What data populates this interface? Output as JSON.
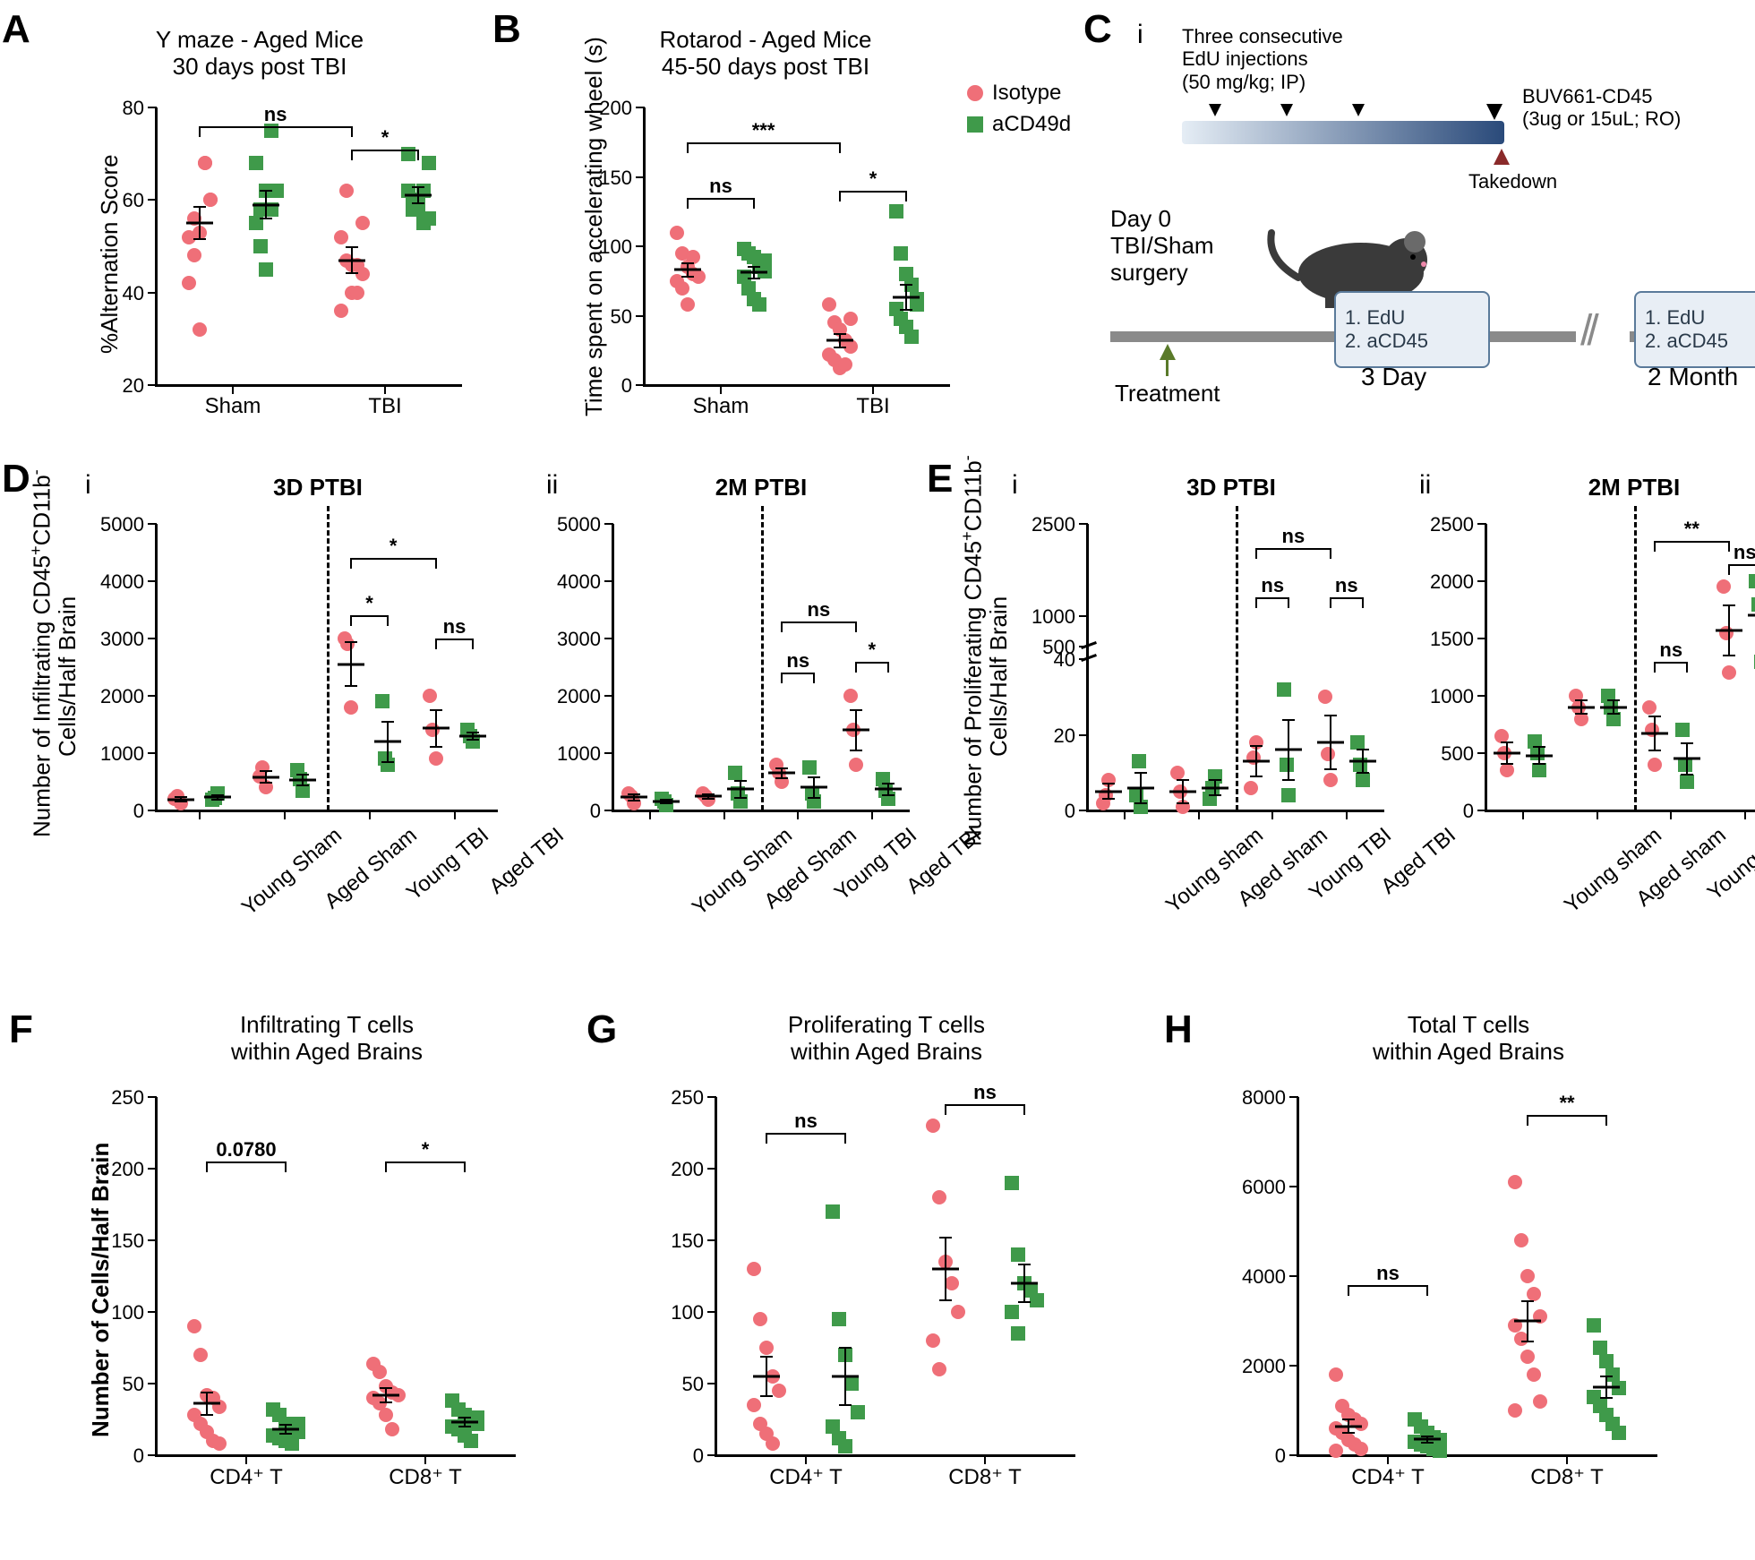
{
  "colors": {
    "isotype": "#ef6f78",
    "acd49d": "#3f9a4a",
    "black": "#000000",
    "bg": "#ffffff"
  },
  "legend": {
    "isotype": "Isotype",
    "acd49d": "aCD49d"
  },
  "panelA": {
    "letter": "A",
    "title1": "Y maze - Aged Mice",
    "title2": "30 days post TBI",
    "ylabel": "%Alternation Score",
    "ylim": [
      20,
      80
    ],
    "ytick_step": 20,
    "x_categories": [
      "Sham",
      "TBI"
    ],
    "groups": {
      "Sham": {
        "Isotype": [
          52,
          56,
          53,
          68,
          60,
          42,
          48,
          32,
          68,
          60
        ],
        "aCD49d": [
          55,
          58,
          62,
          75,
          62,
          68,
          50,
          45,
          58
        ]
      },
      "TBI": {
        "Isotype": [
          52,
          47,
          46,
          46,
          44,
          36,
          62,
          40,
          40,
          55
        ],
        "aCD49d": [
          62,
          60,
          58,
          55,
          68,
          70,
          58,
          60,
          62,
          56
        ]
      }
    },
    "means": {
      "Sham": {
        "Isotype": 55,
        "aCD49d": 59
      },
      "TBI": {
        "Isotype": 47,
        "aCD49d": 61
      }
    },
    "sem": {
      "Sham": {
        "Isotype": 3.5,
        "aCD49d": 3.0
      },
      "TBI": {
        "Isotype": 2.8,
        "aCD49d": 1.8
      }
    },
    "sig": [
      {
        "from": "Sham.Isotype",
        "to": "TBI.Isotype",
        "label": "ns",
        "y": 76
      },
      {
        "from": "TBI.Isotype",
        "to": "TBI.aCD49d",
        "label": "*",
        "y": 71
      }
    ]
  },
  "panelB": {
    "letter": "B",
    "title1": "Rotarod - Aged Mice",
    "title2": "45-50 days post TBI",
    "ylabel": "Time spent on accelerating wheel (s)",
    "ylim": [
      0,
      200
    ],
    "ytick_step": 50,
    "x_categories": [
      "Sham",
      "TBI"
    ],
    "groups": {
      "Sham": {
        "Isotype": [
          110,
          95,
          85,
          80,
          78,
          75,
          70,
          58,
          92
        ],
        "aCD49d": [
          98,
          95,
          92,
          85,
          82,
          78,
          70,
          62,
          58,
          90
        ]
      },
      "TBI": {
        "Isotype": [
          58,
          45,
          40,
          32,
          28,
          22,
          18,
          12,
          15,
          48
        ],
        "aCD49d": [
          125,
          95,
          80,
          72,
          62,
          55,
          48,
          42,
          35,
          58
        ]
      }
    },
    "means": {
      "Sham": {
        "Isotype": 83,
        "aCD49d": 81
      },
      "TBI": {
        "Isotype": 32,
        "aCD49d": 63
      }
    },
    "sem": {
      "Sham": {
        "Isotype": 5,
        "aCD49d": 4
      },
      "TBI": {
        "Isotype": 5,
        "aCD49d": 9
      }
    },
    "sig": [
      {
        "from": "Sham.Isotype",
        "to": "Sham.aCD49d",
        "label": "ns",
        "y": 135
      },
      {
        "from": "Sham.Isotype",
        "to": "TBI.Isotype",
        "label": "***",
        "y": 175
      },
      {
        "from": "TBI.Isotype",
        "to": "TBI.aCD49d",
        "label": "*",
        "y": 140
      }
    ]
  },
  "panelC": {
    "letter": "C",
    "sub_i": "i",
    "edu_text1": "Three  consecutive",
    "edu_text2": "EdU injections",
    "edu_text3": "(50 mg/kg; IP)",
    "buv_text1": "BUV661-CD45",
    "buv_text2": "(3ug or 15uL; RO)",
    "takedown": "Takedown",
    "day0_1": "Day 0",
    "day0_2": "TBI/Sham",
    "day0_3": "surgery",
    "treatment": "Treatment",
    "box_line1": "1. EdU",
    "box_line2": "2. aCD45",
    "tp1": "3 Day",
    "tp2": "2 Month"
  },
  "panelD": {
    "letter": "D",
    "ylabel1": "Number of Infiltrating CD45",
    "ylabel2": "Cells/Half Brain",
    "sub_i": "i",
    "sub_ii": "ii",
    "title_i": "3D PTBI",
    "title_ii": "2M PTBI",
    "ylim": [
      0,
      5000
    ],
    "ytick_step": 1000,
    "x_categories": [
      "Young Sham",
      "Aged Sham",
      "Young TBI",
      "Aged TBI"
    ],
    "i": {
      "groups": {
        "Young Sham": {
          "Isotype": [
            200,
            250,
            120
          ],
          "aCD49d": [
            180,
            220,
            300
          ]
        },
        "Aged Sham": {
          "Isotype": [
            600,
            750,
            400
          ],
          "aCD49d": [
            700,
            550,
            350
          ]
        },
        "Young TBI": {
          "Isotype": [
            3000,
            2900,
            1800
          ],
          "aCD49d": [
            1900,
            900,
            800
          ]
        },
        "Aged TBI": {
          "Isotype": [
            2000,
            1400,
            900
          ],
          "aCD49d": [
            1400,
            1300,
            1200
          ]
        }
      },
      "means": {
        "Young Sham": {
          "Isotype": 190,
          "aCD49d": 230
        },
        "Aged Sham": {
          "Isotype": 580,
          "aCD49d": 530
        },
        "Young TBI": {
          "Isotype": 2550,
          "aCD49d": 1200
        },
        "Aged TBI": {
          "Isotype": 1430,
          "aCD49d": 1300
        }
      },
      "sem": {
        "Young Sham": {
          "Isotype": 40,
          "aCD49d": 40
        },
        "Aged Sham": {
          "Isotype": 100,
          "aCD49d": 100
        },
        "Young TBI": {
          "Isotype": 380,
          "aCD49d": 350
        },
        "Aged TBI": {
          "Isotype": 320,
          "aCD49d": 60
        }
      },
      "sig": [
        {
          "from": "Young TBI.Isotype",
          "to": "Young TBI.aCD49d",
          "label": "*",
          "y": 3400
        },
        {
          "from": "Young TBI.Isotype",
          "to": "Aged TBI.Isotype",
          "label": "*",
          "y": 4400
        },
        {
          "from": "Aged TBI.Isotype",
          "to": "Aged TBI.aCD49d",
          "label": "ns",
          "y": 3000
        }
      ]
    },
    "ii": {
      "groups": {
        "Young Sham": {
          "Isotype": [
            300,
            250,
            120
          ],
          "aCD49d": [
            200,
            150,
            100
          ]
        },
        "Aged Sham": {
          "Isotype": [
            300,
            250,
            180
          ],
          "aCD49d": [
            650,
            300,
            150
          ]
        },
        "Young TBI": {
          "Isotype": [
            800,
            650,
            500
          ],
          "aCD49d": [
            750,
            300,
            150
          ]
        },
        "Aged TBI": {
          "Isotype": [
            2000,
            1400,
            800
          ],
          "aCD49d": [
            550,
            350,
            200
          ]
        }
      },
      "means": {
        "Young Sham": {
          "Isotype": 230,
          "aCD49d": 150
        },
        "Aged Sham": {
          "Isotype": 245,
          "aCD49d": 370
        },
        "Young TBI": {
          "Isotype": 650,
          "aCD49d": 400
        },
        "Aged TBI": {
          "Isotype": 1400,
          "aCD49d": 370
        }
      },
      "sem": {
        "Young Sham": {
          "Isotype": 55,
          "aCD49d": 30
        },
        "Aged Sham": {
          "Isotype": 35,
          "aCD49d": 150
        },
        "Young TBI": {
          "Isotype": 90,
          "aCD49d": 180
        },
        "Aged TBI": {
          "Isotype": 350,
          "aCD49d": 105
        }
      },
      "sig": [
        {
          "from": "Young TBI.Isotype",
          "to": "Young TBI.aCD49d",
          "label": "ns",
          "y": 2400
        },
        {
          "from": "Young TBI.Isotype",
          "to": "Aged TBI.Isotype",
          "label": "ns",
          "y": 3300
        },
        {
          "from": "Aged TBI.Isotype",
          "to": "Aged TBI.aCD49d",
          "label": "*",
          "y": 2600
        }
      ]
    }
  },
  "panelE": {
    "letter": "E",
    "ylabel1": "Number of Proliferating CD45",
    "ylabel2": "Cells/Half Brain",
    "sub_i": "i",
    "sub_ii": "ii",
    "title_i": "3D PTBI",
    "title_ii": "2M PTBI",
    "x_categories": [
      "Young sham",
      "Aged sham",
      "Young TBI",
      "Aged TBI"
    ],
    "i": {
      "ylim_lower": [
        0,
        40
      ],
      "ytick_lower": [
        0,
        20,
        40
      ],
      "ylim_upper": [
        500,
        2500
      ],
      "ytick_upper": [
        500,
        1000,
        2500
      ],
      "groups": {
        "Young sham": {
          "Isotype": [
            2,
            4,
            8
          ],
          "aCD49d": [
            4,
            13,
            1
          ]
        },
        "Aged sham": {
          "Isotype": [
            10,
            5,
            1
          ],
          "aCD49d": [
            3,
            6,
            9
          ]
        },
        "Young TBI": {
          "Isotype": [
            6,
            14,
            18
          ],
          "aCD49d": [
            32,
            12,
            4
          ]
        },
        "Aged TBI": {
          "Isotype": [
            30,
            15,
            8
          ],
          "aCD49d": [
            18,
            12,
            8
          ]
        }
      },
      "means": {
        "Young sham": {
          "Isotype": 5,
          "aCD49d": 6
        },
        "Aged sham": {
          "Isotype": 5,
          "aCD49d": 6
        },
        "Young TBI": {
          "Isotype": 13,
          "aCD49d": 16
        },
        "Aged TBI": {
          "Isotype": 18,
          "aCD49d": 13
        }
      },
      "sem": {
        "Young sham": {
          "Isotype": 2,
          "aCD49d": 4
        },
        "Aged sham": {
          "Isotype": 3,
          "aCD49d": 2
        },
        "Young TBI": {
          "Isotype": 4,
          "aCD49d": 8
        },
        "Aged TBI": {
          "Isotype": 7,
          "aCD49d": 3
        }
      },
      "sig": [
        {
          "from": "Young TBI.Isotype",
          "to": "Young TBI.aCD49d",
          "label": "ns",
          "y_seg": "upper",
          "y": 1300
        },
        {
          "from": "Young TBI.Isotype",
          "to": "Aged TBI.Isotype",
          "label": "ns",
          "y_seg": "upper",
          "y": 2100
        },
        {
          "from": "Aged TBI.Isotype",
          "to": "Aged TBI.aCD49d",
          "label": "ns",
          "y_seg": "upper",
          "y": 1300
        }
      ]
    },
    "ii": {
      "ylim": [
        0,
        2500
      ],
      "ytick_step": 500,
      "groups": {
        "Young sham": {
          "Isotype": [
            650,
            500,
            350
          ],
          "aCD49d": [
            600,
            500,
            350
          ]
        },
        "Aged sham": {
          "Isotype": [
            1000,
            900,
            800
          ],
          "aCD49d": [
            1000,
            900,
            800
          ]
        },
        "Young TBI": {
          "Isotype": [
            900,
            700,
            400
          ],
          "aCD49d": [
            700,
            400,
            250
          ]
        },
        "Aged TBI": {
          "Isotype": [
            1950,
            1550,
            1200
          ],
          "aCD49d": [
            2000,
            1800,
            1300
          ]
        }
      },
      "means": {
        "Young sham": {
          "Isotype": 500,
          "aCD49d": 480
        },
        "Aged sham": {
          "Isotype": 900,
          "aCD49d": 900
        },
        "Young TBI": {
          "Isotype": 670,
          "aCD49d": 450
        },
        "Aged TBI": {
          "Isotype": 1570,
          "aCD49d": 1700
        }
      },
      "sem": {
        "Young sham": {
          "Isotype": 90,
          "aCD49d": 75
        },
        "Aged sham": {
          "Isotype": 60,
          "aCD49d": 60
        },
        "Young TBI": {
          "Isotype": 150,
          "aCD49d": 135
        },
        "Aged TBI": {
          "Isotype": 220,
          "aCD49d": 210
        }
      },
      "sig": [
        {
          "from": "Young TBI.Isotype",
          "to": "Young TBI.aCD49d",
          "label": "ns",
          "y": 1300
        },
        {
          "from": "Young TBI.Isotype",
          "to": "Aged TBI.Isotype",
          "label": "**",
          "y": 2350
        },
        {
          "from": "Aged TBI.Isotype",
          "to": "Aged TBI.aCD49d",
          "label": "ns",
          "y": 2150
        }
      ]
    }
  },
  "panelF": {
    "letter": "F",
    "title": "Infiltrating T cells\nwithin Aged Brains",
    "ylabel": "Number of Cells/Half Brain",
    "ylim": [
      0,
      250
    ],
    "ytick_step": 50,
    "x_categories": [
      "CD4⁺ T",
      "CD8⁺ T"
    ],
    "groups": {
      "CD4⁺ T": {
        "Isotype": [
          90,
          70,
          42,
          40,
          34,
          28,
          22,
          16,
          10,
          8
        ],
        "aCD49d": [
          32,
          28,
          22,
          18,
          16,
          14,
          12,
          10,
          8,
          22
        ]
      },
      "CD8⁺ T": {
        "Isotype": [
          64,
          58,
          48,
          44,
          42,
          40,
          36,
          28,
          18
        ],
        "aCD49d": [
          38,
          32,
          28,
          24,
          22,
          20,
          18,
          14,
          10,
          26
        ]
      }
    },
    "means": {
      "CD4⁺ T": {
        "Isotype": 36,
        "aCD49d": 18
      },
      "CD8⁺ T": {
        "Isotype": 42,
        "aCD49d": 23
      }
    },
    "sem": {
      "CD4⁺ T": {
        "Isotype": 8,
        "aCD49d": 3
      },
      "CD8⁺ T": {
        "Isotype": 5,
        "aCD49d": 3
      }
    },
    "sig": [
      {
        "from": "CD4⁺ T.Isotype",
        "to": "CD4⁺ T.aCD49d",
        "label": "0.0780",
        "y": 205
      },
      {
        "from": "CD8⁺ T.Isotype",
        "to": "CD8⁺ T.aCD49d",
        "label": "*",
        "y": 205
      }
    ]
  },
  "panelG": {
    "letter": "G",
    "title": "Proliferating T cells\nwithin Aged Brains",
    "ylim": [
      0,
      250
    ],
    "ytick_step": 50,
    "x_categories": [
      "CD4⁺ T",
      "CD8⁺ T"
    ],
    "groups": {
      "CD4⁺ T": {
        "Isotype": [
          130,
          95,
          75,
          55,
          45,
          35,
          22,
          15,
          8
        ],
        "aCD49d": [
          170,
          95,
          70,
          50,
          30,
          20,
          12,
          6
        ]
      },
      "CD8⁺ T": {
        "Isotype": [
          230,
          180,
          135,
          120,
          100,
          80,
          60
        ],
        "aCD49d": [
          190,
          140,
          120,
          115,
          108,
          100,
          85
        ]
      }
    },
    "means": {
      "CD4⁺ T": {
        "Isotype": 55,
        "aCD49d": 55
      },
      "CD8⁺ T": {
        "Isotype": 130,
        "aCD49d": 120
      }
    },
    "sem": {
      "CD4⁺ T": {
        "Isotype": 14,
        "aCD49d": 20
      },
      "CD8⁺ T": {
        "Isotype": 22,
        "aCD49d": 13
      }
    },
    "sig": [
      {
        "from": "CD4⁺ T.Isotype",
        "to": "CD4⁺ T.aCD49d",
        "label": "ns",
        "y": 225
      },
      {
        "from": "CD8⁺ T.Isotype",
        "to": "CD8⁺ T.aCD49d",
        "label": "ns",
        "y": 245
      }
    ]
  },
  "panelH": {
    "letter": "H",
    "title": "Total T cells\nwithin Aged Brains",
    "ylim": [
      0,
      8000
    ],
    "ytick_step": 2000,
    "x_categories": [
      "CD4⁺ T",
      "CD8⁺ T"
    ],
    "groups": {
      "CD4⁺ T": {
        "Isotype": [
          1800,
          1100,
          900,
          800,
          700,
          600,
          500,
          350,
          250,
          150,
          100
        ],
        "aCD49d": [
          800,
          650,
          500,
          400,
          350,
          300,
          250,
          200,
          150,
          100
        ]
      },
      "CD8⁺ T": {
        "Isotype": [
          6100,
          4800,
          4000,
          3600,
          3100,
          2900,
          2600,
          2200,
          1800,
          1200,
          1000
        ],
        "aCD49d": [
          2900,
          2400,
          2100,
          1800,
          1500,
          1300,
          1100,
          900,
          700,
          500
        ]
      }
    },
    "means": {
      "CD4⁺ T": {
        "Isotype": 650,
        "aCD49d": 360
      },
      "CD8⁺ T": {
        "Isotype": 3000,
        "aCD49d": 1520
      }
    },
    "sem": {
      "CD4⁺ T": {
        "Isotype": 150,
        "aCD49d": 70
      },
      "CD8⁺ T": {
        "Isotype": 450,
        "aCD49d": 240
      }
    },
    "sig": [
      {
        "from": "CD4⁺ T.Isotype",
        "to": "CD4⁺ T.aCD49d",
        "label": "ns",
        "y": 3800
      },
      {
        "from": "CD8⁺ T.Isotype",
        "to": "CD8⁺ T.aCD49d",
        "label": "**",
        "y": 7600
      }
    ]
  }
}
